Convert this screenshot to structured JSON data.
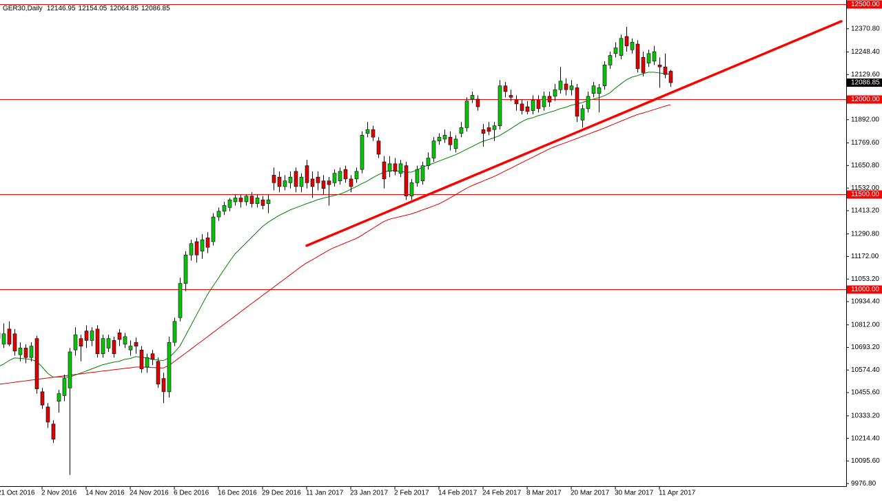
{
  "chart_data": {
    "type": "candlestick",
    "title": "GER30,Daily",
    "categories": [
      "21 Oct 2016",
      null,
      null,
      null,
      null,
      null,
      null,
      null,
      "2 Nov 2016",
      null,
      null,
      null,
      null,
      null,
      null,
      null,
      "14 Nov 2016",
      null,
      null,
      null,
      null,
      null,
      null,
      null,
      "24 Nov 2016",
      null,
      null,
      null,
      null,
      null,
      null,
      null,
      "6 Dec 2016",
      null,
      null,
      null,
      null,
      null,
      null,
      null,
      "16 Dec 2016",
      null,
      null,
      null,
      null,
      null,
      null,
      null,
      "29 Dec 2016",
      null,
      null,
      null,
      null,
      null,
      null,
      null,
      "11 Jan 2017",
      null,
      null,
      null,
      null,
      null,
      null,
      null,
      "23 Jan 2017",
      null,
      null,
      null,
      null,
      null,
      null,
      null,
      "2 Feb 2017",
      null,
      null,
      null,
      null,
      null,
      null,
      null,
      "14 Feb 2017",
      null,
      null,
      null,
      null,
      null,
      null,
      null,
      "24 Feb 2017",
      null,
      null,
      null,
      null,
      null,
      null,
      null,
      "8 Mar 2017",
      null,
      null,
      null,
      null,
      null,
      null,
      null,
      "20 Mar 2017",
      null,
      null,
      null,
      null,
      null,
      null,
      null,
      "30 Mar 2017",
      null,
      null,
      null,
      null,
      null,
      null,
      null,
      "11 Apr 2017",
      null,
      null
    ],
    "candles": {
      "open": [
        10740,
        10710,
        10790,
        10765,
        10655,
        10690,
        10640,
        10740,
        10460,
        10380,
        10290,
        10410,
        10440,
        10480,
        10680,
        10740,
        10780,
        10730,
        10790,
        10660,
        10690,
        10730,
        10770,
        10710,
        10680,
        10720,
        10680,
        10590,
        10660,
        10620,
        10530,
        10460,
        10720,
        10850,
        11030,
        11180,
        11250,
        11200,
        11270,
        11250,
        11380,
        11410,
        11430,
        11460,
        11480,
        11460,
        11490,
        11450,
        11470,
        11450,
        11600,
        11590,
        11540,
        11560,
        11620,
        11540,
        11650,
        11580,
        11590,
        11570,
        11570,
        11560,
        11570,
        11630,
        11580,
        11580,
        11630,
        11820,
        11840,
        11780,
        11670,
        11620,
        11660,
        11610,
        11650,
        11490,
        11560,
        11570,
        11650,
        11690,
        11780,
        11790,
        11800,
        11740,
        11820,
        11850,
        12000,
        12000,
        11840,
        11850,
        11840,
        11860,
        12070,
        12020,
        11995,
        11975,
        11960,
        11940,
        11995,
        11960,
        12015,
        12015,
        12050,
        12080,
        12050,
        12060,
        11890,
        11950,
        12030,
        12030,
        12070,
        12180,
        12240,
        12230,
        12330,
        12260,
        12290,
        12220,
        12190,
        12200,
        12180,
        12170,
        12146.95
      ],
      "high": [
        10790,
        10820,
        10830,
        10790,
        10720,
        10710,
        10720,
        10755,
        10480,
        10400,
        10310,
        10470,
        10550,
        10690,
        10800,
        10760,
        10810,
        10800,
        10810,
        10760,
        10760,
        10750,
        10790,
        10770,
        10730,
        10745,
        10700,
        10660,
        10680,
        10640,
        10560,
        10750,
        10850,
        11060,
        11200,
        11260,
        11270,
        11290,
        11300,
        11400,
        11430,
        11460,
        11480,
        11500,
        11500,
        11500,
        11510,
        11500,
        11490,
        11500,
        11640,
        11620,
        11600,
        11620,
        11640,
        11610,
        11680,
        11620,
        11620,
        11600,
        11590,
        11630,
        11640,
        11650,
        11600,
        11640,
        11830,
        11880,
        11860,
        11800,
        11700,
        11700,
        11690,
        11680,
        11670,
        11580,
        11650,
        11670,
        11720,
        11800,
        11820,
        11840,
        11830,
        11810,
        11880,
        12010,
        12040,
        12020,
        11870,
        11880,
        11880,
        12100,
        12090,
        12050,
        12020,
        12000,
        11990,
        12020,
        12020,
        12040,
        12040,
        12080,
        12170,
        12110,
        12100,
        12080,
        11970,
        12040,
        12090,
        12080,
        12200,
        12250,
        12300,
        12340,
        12380,
        12320,
        12310,
        12250,
        12260,
        12280,
        12220,
        12240,
        12154.05
      ],
      "low": [
        10720,
        10690,
        10700,
        10650,
        10620,
        10610,
        10620,
        10450,
        10370,
        10270,
        10190,
        10350,
        10410,
        10022,
        10650,
        10620,
        10690,
        10700,
        10640,
        10640,
        10670,
        10640,
        10700,
        10690,
        10650,
        10660,
        10560,
        10560,
        10600,
        10480,
        10400,
        10430,
        10700,
        10830,
        10990,
        11150,
        11140,
        11160,
        11190,
        11230,
        11360,
        11390,
        11410,
        11440,
        11430,
        11440,
        11430,
        11430,
        11420,
        11400,
        11520,
        11510,
        11520,
        11530,
        11510,
        11510,
        11530,
        11480,
        11520,
        11500,
        11440,
        11540,
        11550,
        11560,
        11510,
        11560,
        11610,
        11800,
        11780,
        11690,
        11530,
        11590,
        11600,
        11590,
        11470,
        11470,
        11540,
        11550,
        11630,
        11670,
        11760,
        11770,
        11730,
        11720,
        11800,
        11830,
        11980,
        11940,
        11750,
        11810,
        11780,
        11840,
        12010,
        11990,
        11940,
        11920,
        11920,
        11920,
        11930,
        11940,
        11960,
        11990,
        12030,
        12020,
        12020,
        11880,
        11850,
        11930,
        12010,
        11930,
        12050,
        12160,
        12220,
        12210,
        12250,
        12240,
        12140,
        12120,
        12170,
        12180,
        12060,
        12110,
        12064.85
      ],
      "close": [
        10770,
        10765,
        10710,
        10674,
        10690,
        10640,
        10700,
        10475,
        10390,
        10300,
        10210,
        10450,
        10530,
        10670,
        10760,
        10700,
        10730,
        10780,
        10660,
        10740,
        10740,
        10660,
        10735,
        10750,
        10700,
        10700,
        10580,
        10640,
        10630,
        10500,
        10460,
        10720,
        10830,
        11030,
        11180,
        11240,
        11180,
        11260,
        11220,
        11380,
        11410,
        11440,
        11470,
        11480,
        11460,
        11490,
        11450,
        11480,
        11440,
        11470,
        11560,
        11540,
        11570,
        11590,
        11540,
        11590,
        11560,
        11540,
        11560,
        11530,
        11550,
        11610,
        11620,
        11580,
        11540,
        11620,
        11810,
        11840,
        11800,
        11710,
        11580,
        11660,
        11620,
        11660,
        11490,
        11560,
        11630,
        11650,
        11690,
        11780,
        11800,
        11810,
        11760,
        11790,
        11850,
        11990,
        12020,
        11960,
        11820,
        11830,
        11860,
        12070,
        12040,
        12010,
        11975,
        11940,
        11935,
        11995,
        11950,
        12015,
        11985,
        12050,
        12095,
        12050,
        12070,
        11910,
        11950,
        12015,
        12070,
        12060,
        12180,
        12230,
        12270,
        12320,
        12280,
        12300,
        12160,
        12140,
        12240,
        12250,
        12170,
        12130,
        12086.85
      ]
    },
    "up_color": "#00c800",
    "down_color": "#e00000",
    "wick_color": "#000000",
    "moving_averages": [
      {
        "color": "#008000",
        "values": [
          10591,
          10605,
          10624,
          10638,
          10636,
          10633,
          10630,
          10620,
          10591,
          10558,
          10537,
          10537,
          10537,
          10537,
          10548,
          10558,
          10569,
          10580,
          10591,
          10602,
          10609,
          10616,
          10620,
          10631,
          10635,
          10645,
          10642,
          10638,
          10631,
          10627,
          10624,
          10638,
          10667,
          10700,
          10754,
          10808,
          10863,
          10917,
          10971,
          11015,
          11058,
          11102,
          11145,
          11185,
          11214,
          11243,
          11272,
          11301,
          11330,
          11352,
          11370,
          11388,
          11402,
          11417,
          11428,
          11439,
          11450,
          11460,
          11471,
          11479,
          11486,
          11493,
          11500,
          11511,
          11526,
          11540,
          11555,
          11569,
          11587,
          11602,
          11616,
          11624,
          11624,
          11620,
          11616,
          11616,
          11627,
          11642,
          11652,
          11663,
          11674,
          11685,
          11696,
          11707,
          11721,
          11736,
          11750,
          11765,
          11779,
          11787,
          11797,
          11808,
          11826,
          11844,
          11863,
          11881,
          11895,
          11902,
          11913,
          11921,
          11931,
          11939,
          11950,
          11957,
          11968,
          11975,
          11982,
          11993,
          12000,
          12008,
          12018,
          12033,
          12058,
          12080,
          12102,
          12116,
          12124,
          12134,
          12142,
          12142,
          12138,
          12134,
          12131
        ]
      },
      {
        "color": "#e00000",
        "values": [
          10499,
          10502,
          10506,
          10510,
          10514,
          10517,
          10521,
          10525,
          10529,
          10532,
          10536,
          10540,
          10544,
          10547,
          10551,
          10554,
          10558,
          10562,
          10565,
          10569,
          10572,
          10576,
          10579,
          10583,
          10586,
          10590,
          10590,
          10589,
          10588,
          10586,
          10585,
          10598,
          10619,
          10641,
          10662,
          10684,
          10706,
          10727,
          10749,
          10771,
          10793,
          10815,
          10836,
          10858,
          10880,
          10902,
          10924,
          10945,
          10967,
          10988,
          11010,
          11032,
          11053,
          11075,
          11097,
          11119,
          11138,
          11154,
          11171,
          11188,
          11205,
          11219,
          11231,
          11243,
          11255,
          11267,
          11283,
          11302,
          11320,
          11338,
          11356,
          11368,
          11375,
          11382,
          11389,
          11396,
          11406,
          11417,
          11427,
          11438,
          11449,
          11464,
          11480,
          11497,
          11514,
          11531,
          11545,
          11557,
          11569,
          11581,
          11593,
          11607,
          11622,
          11636,
          11651,
          11666,
          11680,
          11694,
          11709,
          11723,
          11738,
          11750,
          11761,
          11771,
          11782,
          11793,
          11804,
          11815,
          11826,
          11837,
          11848,
          11860,
          11872,
          11884,
          11896,
          11908,
          11919,
          11927,
          11936,
          11945,
          11954,
          11963,
          11971
        ]
      }
    ],
    "trendline": {
      "color": "#ff0000",
      "x": [
        56,
        153
      ],
      "y": [
        11229,
        12410
      ]
    },
    "hlines": [
      {
        "value": 12500,
        "label": "12500.00",
        "color": "#ff0000"
      },
      {
        "value": 12000,
        "label": "12000.00",
        "color": "#ff0000"
      },
      {
        "value": 11500,
        "label": "11500.00",
        "color": "#ff0000"
      },
      {
        "value": 11000,
        "label": "11000.00",
        "color": "#ff0000"
      }
    ],
    "ylim": [
      9963,
      12522
    ],
    "yticks": [
      {
        "value": 12370.8,
        "label": "12370.80"
      },
      {
        "value": 12248.4,
        "label": "12248.40"
      },
      {
        "value": 12129.6,
        "label": "12129.60"
      },
      {
        "value": 11892,
        "label": "11892.00"
      },
      {
        "value": 11769.6,
        "label": "11769.60"
      },
      {
        "value": 11650.8,
        "label": "11650.80"
      },
      {
        "value": 11532,
        "label": "11532.00"
      },
      {
        "value": 11413.2,
        "label": "11413.20"
      },
      {
        "value": 11290.8,
        "label": "11290.80"
      },
      {
        "value": 11172,
        "label": "11172.00"
      },
      {
        "value": 11053.2,
        "label": "11053.20"
      },
      {
        "value": 10934.4,
        "label": "10934.40"
      },
      {
        "value": 10812,
        "label": "10812.00"
      },
      {
        "value": 10693.2,
        "label": "10693.20"
      },
      {
        "value": 10574.4,
        "label": "10574.40"
      },
      {
        "value": 10455.6,
        "label": "10455.60"
      },
      {
        "value": 10333.2,
        "label": "10333.20"
      },
      {
        "value": 10214.4,
        "label": "10214.40"
      },
      {
        "value": 10095.6,
        "label": "10095.60"
      },
      {
        "value": 9976.8,
        "label": "9976.80"
      }
    ],
    "grid": false
  }
}
